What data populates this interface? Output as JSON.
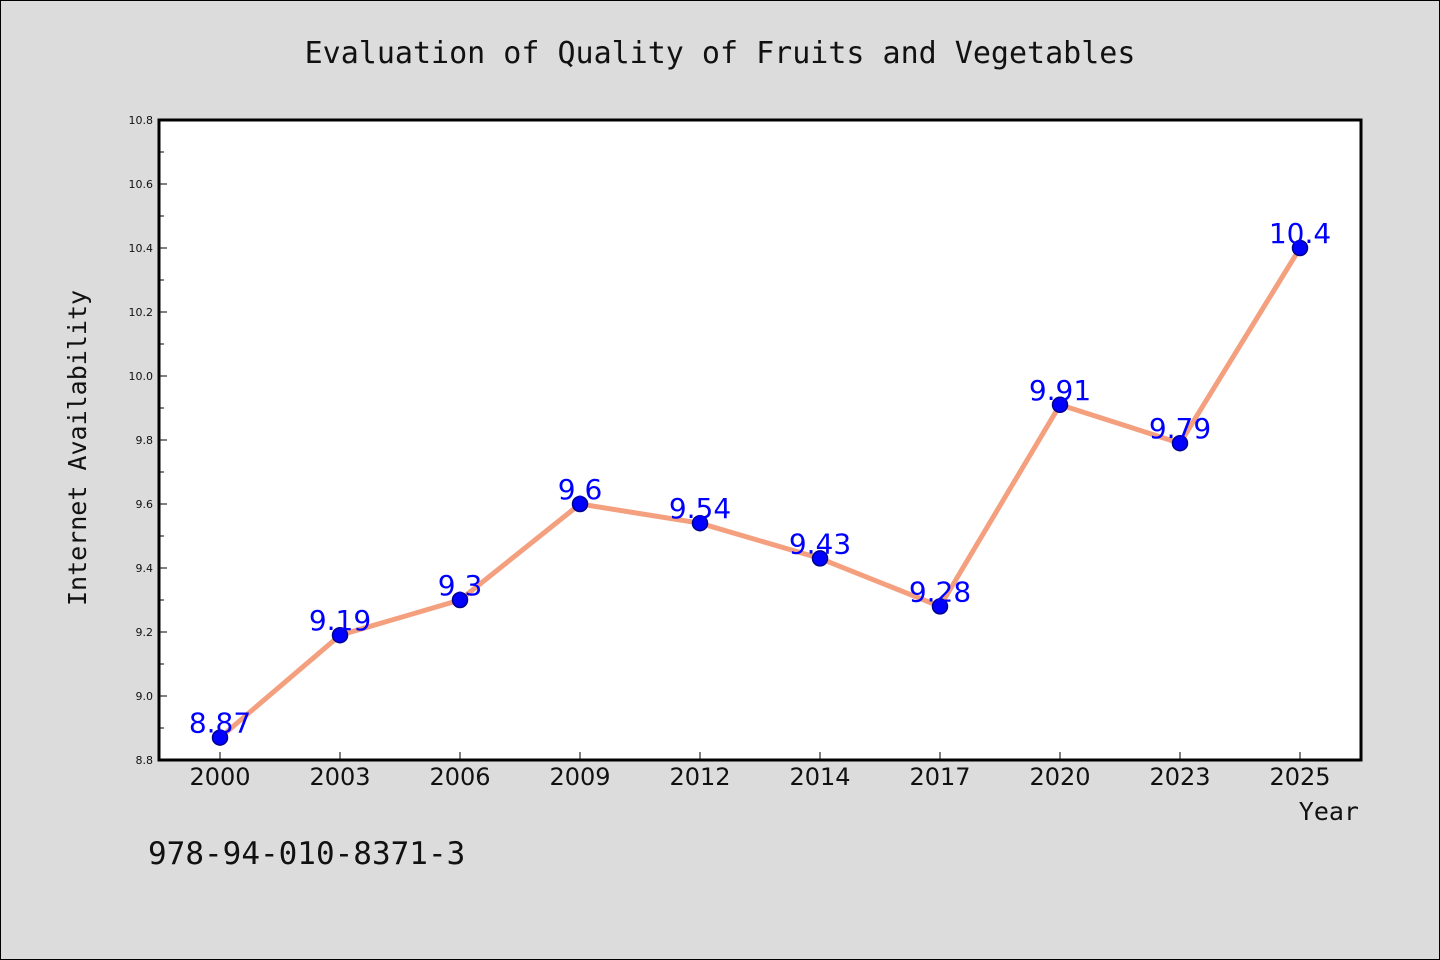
{
  "chart_data": {
    "type": "line",
    "title": "Evaluation of Quality of Fruits and Vegetables",
    "xlabel": "Year",
    "ylabel": "Internet Availability",
    "categories": [
      "2000",
      "2003",
      "2006",
      "2009",
      "2012",
      "2014",
      "2017",
      "2020",
      "2023",
      "2025"
    ],
    "series": [
      {
        "values": [
          8.87,
          9.19,
          9.3,
          9.6,
          9.54,
          9.43,
          9.28,
          9.91,
          9.79,
          10.4
        ],
        "labels": [
          "8.87",
          "9.19",
          "9.3",
          "9.6",
          "9.54",
          "9.43",
          "9.28",
          "9.91",
          "9.79",
          "10.4"
        ]
      }
    ],
    "ylim": [
      8.8,
      10.8
    ],
    "yticks": [
      "8.8",
      "9.0",
      "9.2",
      "9.4",
      "9.6",
      "9.8",
      "10.0",
      "10.2",
      "10.4",
      "10.6",
      "10.8"
    ],
    "grid": false,
    "legend": "none",
    "colors": {
      "line": "#f4a07e",
      "marker_fill": "#0000ff",
      "marker_edge": "#00008b",
      "data_label": "#0000ff",
      "plot_bg": "#ffffff",
      "figure_bg": "#dcdcdc"
    }
  },
  "footer": {
    "isbn": "978-94-010-8371-3"
  }
}
